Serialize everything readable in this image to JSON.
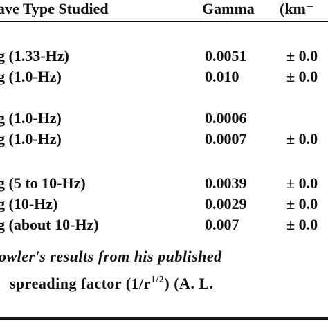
{
  "table": {
    "header": [
      "ave Type Studied",
      "Gamma",
      "(km⁻"
    ],
    "groups": [
      {
        "rows": [
          [
            "g (1.33-Hz)",
            "0.0051",
            "± 0.0"
          ],
          [
            "g (1.0-Hz)",
            "0.010",
            "± 0.0"
          ]
        ]
      },
      {
        "rows": [
          [
            "g (1.0-Hz)",
            "0.0006"
          ],
          [
            "g (1.0-Hz)",
            "0.0007",
            "± 0.0"
          ]
        ]
      },
      {
        "rows": [
          [
            "g (5 to 10-Hz)",
            "0.0039",
            "± 0.0"
          ],
          [
            "g (10-Hz)",
            "0.0029",
            "± 0.0"
          ],
          [
            "g (about 10-Hz)",
            "0.007",
            "± 0.0"
          ]
        ]
      }
    ]
  },
  "footnote": {
    "line1": "owler's results from his published",
    "line2": [
      "spreading factor (1/r",
      "1/2",
      ") (A. L."
    ]
  }
}
